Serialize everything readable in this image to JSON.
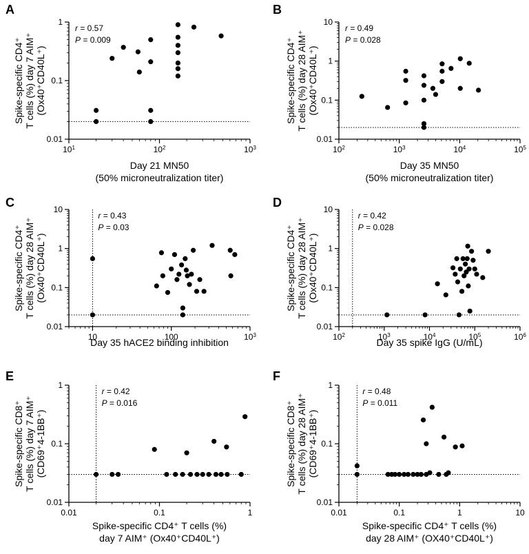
{
  "chart_data": [
    {
      "type": "scatter",
      "panel": "A",
      "x_scale": "log",
      "xlim": [
        10,
        1000
      ],
      "xticks": [
        {
          "v": 10,
          "b": "10",
          "e": "1"
        },
        {
          "v": 100,
          "b": "10",
          "e": "2"
        },
        {
          "v": 1000,
          "b": "10",
          "e": "3"
        }
      ],
      "y_scale": "log",
      "ylim": [
        0.01,
        1
      ],
      "yticks": [
        {
          "v": 0.01,
          "t": "0.01"
        },
        {
          "v": 0.1,
          "t": "0.1"
        },
        {
          "v": 1,
          "t": "1"
        }
      ],
      "ylabel": [
        "Spike-specific CD4⁺",
        "T cells (%) day 7 AIM⁺",
        "(Ox40⁺CD40L⁺)"
      ],
      "xlabel": [
        "Day 21 MN50",
        "(50% microneutralization titer)"
      ],
      "r_text": "= 0.57",
      "p_text": "= 0.009",
      "hline": 0.02,
      "vline": null,
      "points": [
        [
          20,
          0.031
        ],
        [
          20,
          0.02
        ],
        [
          30,
          0.24
        ],
        [
          40,
          0.37
        ],
        [
          58,
          0.31
        ],
        [
          60,
          0.14
        ],
        [
          80,
          0.5
        ],
        [
          80,
          0.21
        ],
        [
          80,
          0.031
        ],
        [
          80,
          0.02
        ],
        [
          160,
          0.9
        ],
        [
          160,
          0.55
        ],
        [
          160,
          0.4
        ],
        [
          160,
          0.3
        ],
        [
          160,
          0.2
        ],
        [
          160,
          0.16
        ],
        [
          160,
          0.12
        ],
        [
          240,
          0.82
        ],
        [
          480,
          0.58
        ]
      ]
    },
    {
      "type": "scatter",
      "panel": "B",
      "x_scale": "log",
      "xlim": [
        100,
        100000
      ],
      "xticks": [
        {
          "v": 100,
          "b": "10",
          "e": "2"
        },
        {
          "v": 1000,
          "b": "10",
          "e": "3"
        },
        {
          "v": 10000,
          "b": "10",
          "e": "4"
        },
        {
          "v": 100000,
          "b": "10",
          "e": "5"
        }
      ],
      "y_scale": "log",
      "ylim": [
        0.01,
        10
      ],
      "yticks": [
        {
          "v": 0.01,
          "t": "0.01"
        },
        {
          "v": 0.1,
          "t": "0.1"
        },
        {
          "v": 1,
          "t": "1"
        },
        {
          "v": 10,
          "t": "10"
        }
      ],
      "ylabel": [
        "Spike-specific CD4⁺",
        "T cells (%) day 28 AIM⁺",
        "(Ox40⁺CD40L⁺)"
      ],
      "xlabel": [
        "Day 35 MN50",
        "(50% microneutralization titer)"
      ],
      "r_text": "= 0.49",
      "p_text": "= 0.028",
      "hline": 0.02,
      "vline": null,
      "points": [
        [
          240,
          0.125
        ],
        [
          640,
          0.065
        ],
        [
          1280,
          0.55
        ],
        [
          1280,
          0.32
        ],
        [
          1280,
          0.085
        ],
        [
          2560,
          0.42
        ],
        [
          2560,
          0.24
        ],
        [
          2560,
          0.1
        ],
        [
          2560,
          0.025
        ],
        [
          2560,
          0.02
        ],
        [
          3600,
          0.2
        ],
        [
          4000,
          0.14
        ],
        [
          5120,
          0.85
        ],
        [
          5120,
          0.55
        ],
        [
          5120,
          0.3
        ],
        [
          7200,
          0.65
        ],
        [
          10240,
          1.15
        ],
        [
          10240,
          0.2
        ],
        [
          14400,
          0.88
        ],
        [
          20480,
          0.18
        ]
      ]
    },
    {
      "type": "scatter",
      "panel": "C",
      "x_scale": "log",
      "xlim": [
        5,
        1000
      ],
      "xticks": [
        {
          "v": 10,
          "t": "10"
        },
        {
          "v": 100,
          "t": "100"
        },
        {
          "v": 1000,
          "b": "10",
          "e": "3"
        }
      ],
      "y_scale": "log",
      "ylim": [
        0.01,
        10
      ],
      "yticks": [
        {
          "v": 0.01,
          "t": "0.01"
        },
        {
          "v": 0.1,
          "t": "0.1"
        },
        {
          "v": 1,
          "t": "1"
        },
        {
          "v": 10,
          "t": "10"
        }
      ],
      "ylabel": [
        "Spike-specific CD4⁺",
        "T cells (%) day 28 AIM⁺",
        "(Ox40⁺CD40L⁺)"
      ],
      "xlabel": [
        "Day 35 hACE2 binding inhibition"
      ],
      "r_text": "= 0.43",
      "p_text": "= 0.03",
      "hline": 0.02,
      "vline": 10,
      "points": [
        [
          10,
          0.55
        ],
        [
          10,
          0.02
        ],
        [
          65,
          0.11
        ],
        [
          75,
          0.78
        ],
        [
          78,
          0.2
        ],
        [
          90,
          0.075
        ],
        [
          100,
          0.3
        ],
        [
          110,
          0.7
        ],
        [
          118,
          0.16
        ],
        [
          125,
          0.22
        ],
        [
          135,
          0.38
        ],
        [
          140,
          0.03
        ],
        [
          140,
          0.02
        ],
        [
          150,
          0.55
        ],
        [
          155,
          0.28
        ],
        [
          160,
          0.2
        ],
        [
          170,
          0.12
        ],
        [
          180,
          0.22
        ],
        [
          190,
          0.9
        ],
        [
          210,
          0.08
        ],
        [
          230,
          0.16
        ],
        [
          260,
          0.08
        ],
        [
          330,
          1.2
        ],
        [
          560,
          0.9
        ],
        [
          570,
          0.2
        ],
        [
          640,
          0.7
        ]
      ]
    },
    {
      "type": "scatter",
      "panel": "D",
      "x_scale": "log",
      "xlim": [
        100,
        1000000
      ],
      "xticks": [
        {
          "v": 100,
          "b": "10",
          "e": "2"
        },
        {
          "v": 1000,
          "b": "10",
          "e": "3"
        },
        {
          "v": 10000,
          "b": "10",
          "e": "4"
        },
        {
          "v": 100000,
          "b": "10",
          "e": "5"
        },
        {
          "v": 1000000,
          "b": "10",
          "e": "6"
        }
      ],
      "y_scale": "log",
      "ylim": [
        0.01,
        10
      ],
      "yticks": [
        {
          "v": 0.01,
          "t": "0.01"
        },
        {
          "v": 0.1,
          "t": "0.1"
        },
        {
          "v": 1,
          "t": "1"
        },
        {
          "v": 10,
          "t": "10"
        }
      ],
      "ylabel": [
        "Spike-specific CD4⁺",
        "T cells (%) day 28 AIM⁺",
        "(Ox40⁺CD40L⁺)"
      ],
      "xlabel": [
        "Day 35 spike IgG (U/mL)"
      ],
      "r_text": "= 0.42",
      "p_text": "= 0.028",
      "hline": 0.02,
      "vline": 200,
      "points": [
        [
          1150,
          0.02
        ],
        [
          8000,
          0.02
        ],
        [
          15000,
          0.125
        ],
        [
          23000,
          0.065
        ],
        [
          33000,
          0.32
        ],
        [
          37000,
          0.22
        ],
        [
          40000,
          0.55
        ],
        [
          42000,
          0.14
        ],
        [
          45000,
          0.02
        ],
        [
          48000,
          0.3
        ],
        [
          52000,
          0.08
        ],
        [
          55000,
          0.55
        ],
        [
          58000,
          0.2
        ],
        [
          62000,
          0.4
        ],
        [
          65000,
          0.25
        ],
        [
          68000,
          0.55
        ],
        [
          70000,
          1.15
        ],
        [
          72000,
          0.11
        ],
        [
          75000,
          0.3
        ],
        [
          78000,
          0.025
        ],
        [
          85000,
          0.85
        ],
        [
          92000,
          0.5
        ],
        [
          100000,
          0.3
        ],
        [
          110000,
          0.22
        ],
        [
          150000,
          0.18
        ],
        [
          200000,
          0.85
        ]
      ]
    },
    {
      "type": "scatter",
      "panel": "E",
      "x_scale": "log",
      "xlim": [
        0.01,
        1
      ],
      "xticks": [
        {
          "v": 0.01,
          "t": "0.01"
        },
        {
          "v": 0.1,
          "t": "0.1"
        },
        {
          "v": 1,
          "t": "1"
        }
      ],
      "y_scale": "log",
      "ylim": [
        0.01,
        1
      ],
      "yticks": [
        {
          "v": 0.01,
          "t": "0.01"
        },
        {
          "v": 0.1,
          "t": "0.1"
        },
        {
          "v": 1,
          "t": "1"
        }
      ],
      "ylabel": [
        "Spike-specific CD8⁺",
        "T cells (%) day 7 AIM⁺",
        "(CD69⁺4-1BB⁺)"
      ],
      "xlabel": [
        "Spike-specific CD4⁺ T cells (%)",
        "day 7 AIM⁺ (Ox40⁺CD40L⁺)"
      ],
      "r_text": "= 0.42",
      "p_text": "= 0.016",
      "hline": 0.03,
      "vline": 0.02,
      "points": [
        [
          0.02,
          0.03
        ],
        [
          0.03,
          0.03
        ],
        [
          0.035,
          0.03
        ],
        [
          0.088,
          0.08
        ],
        [
          0.12,
          0.03
        ],
        [
          0.15,
          0.03
        ],
        [
          0.18,
          0.03
        ],
        [
          0.2,
          0.07
        ],
        [
          0.22,
          0.03
        ],
        [
          0.26,
          0.03
        ],
        [
          0.3,
          0.03
        ],
        [
          0.35,
          0.03
        ],
        [
          0.4,
          0.11
        ],
        [
          0.42,
          0.03
        ],
        [
          0.48,
          0.03
        ],
        [
          0.55,
          0.088
        ],
        [
          0.56,
          0.03
        ],
        [
          0.8,
          0.03
        ],
        [
          0.88,
          0.29
        ]
      ]
    },
    {
      "type": "scatter",
      "panel": "F",
      "x_scale": "log",
      "xlim": [
        0.01,
        10
      ],
      "xticks": [
        {
          "v": 0.01,
          "t": "0.01"
        },
        {
          "v": 0.1,
          "t": "0.1"
        },
        {
          "v": 1,
          "t": "1"
        },
        {
          "v": 10,
          "t": "10"
        }
      ],
      "y_scale": "log",
      "ylim": [
        0.01,
        1
      ],
      "yticks": [
        {
          "v": 0.01,
          "t": "0.01"
        },
        {
          "v": 0.1,
          "t": "0.1"
        },
        {
          "v": 1,
          "t": "1"
        }
      ],
      "ylabel": [
        "Spike-specific CD8⁺",
        "T cells (%) day 28 AIM⁺",
        "(CD69⁺4-1BB⁺)"
      ],
      "xlabel": [
        "Spike-specific CD4⁺ T cells (%)",
        "day 28 AIM⁺ (OX40⁺CD40L⁺)"
      ],
      "r_text": "= 0.48",
      "p_text": "= 0.011",
      "hline": 0.03,
      "vline": 0.02,
      "points": [
        [
          0.02,
          0.042
        ],
        [
          0.02,
          0.03
        ],
        [
          0.065,
          0.03
        ],
        [
          0.075,
          0.03
        ],
        [
          0.085,
          0.03
        ],
        [
          0.1,
          0.03
        ],
        [
          0.12,
          0.03
        ],
        [
          0.14,
          0.03
        ],
        [
          0.17,
          0.03
        ],
        [
          0.2,
          0.03
        ],
        [
          0.23,
          0.03
        ],
        [
          0.25,
          0.255
        ],
        [
          0.28,
          0.03
        ],
        [
          0.28,
          0.1
        ],
        [
          0.32,
          0.032
        ],
        [
          0.35,
          0.42
        ],
        [
          0.45,
          0.03
        ],
        [
          0.55,
          0.13
        ],
        [
          0.6,
          0.03
        ],
        [
          0.65,
          0.032
        ],
        [
          0.85,
          0.088
        ],
        [
          1.1,
          0.092
        ]
      ]
    }
  ]
}
